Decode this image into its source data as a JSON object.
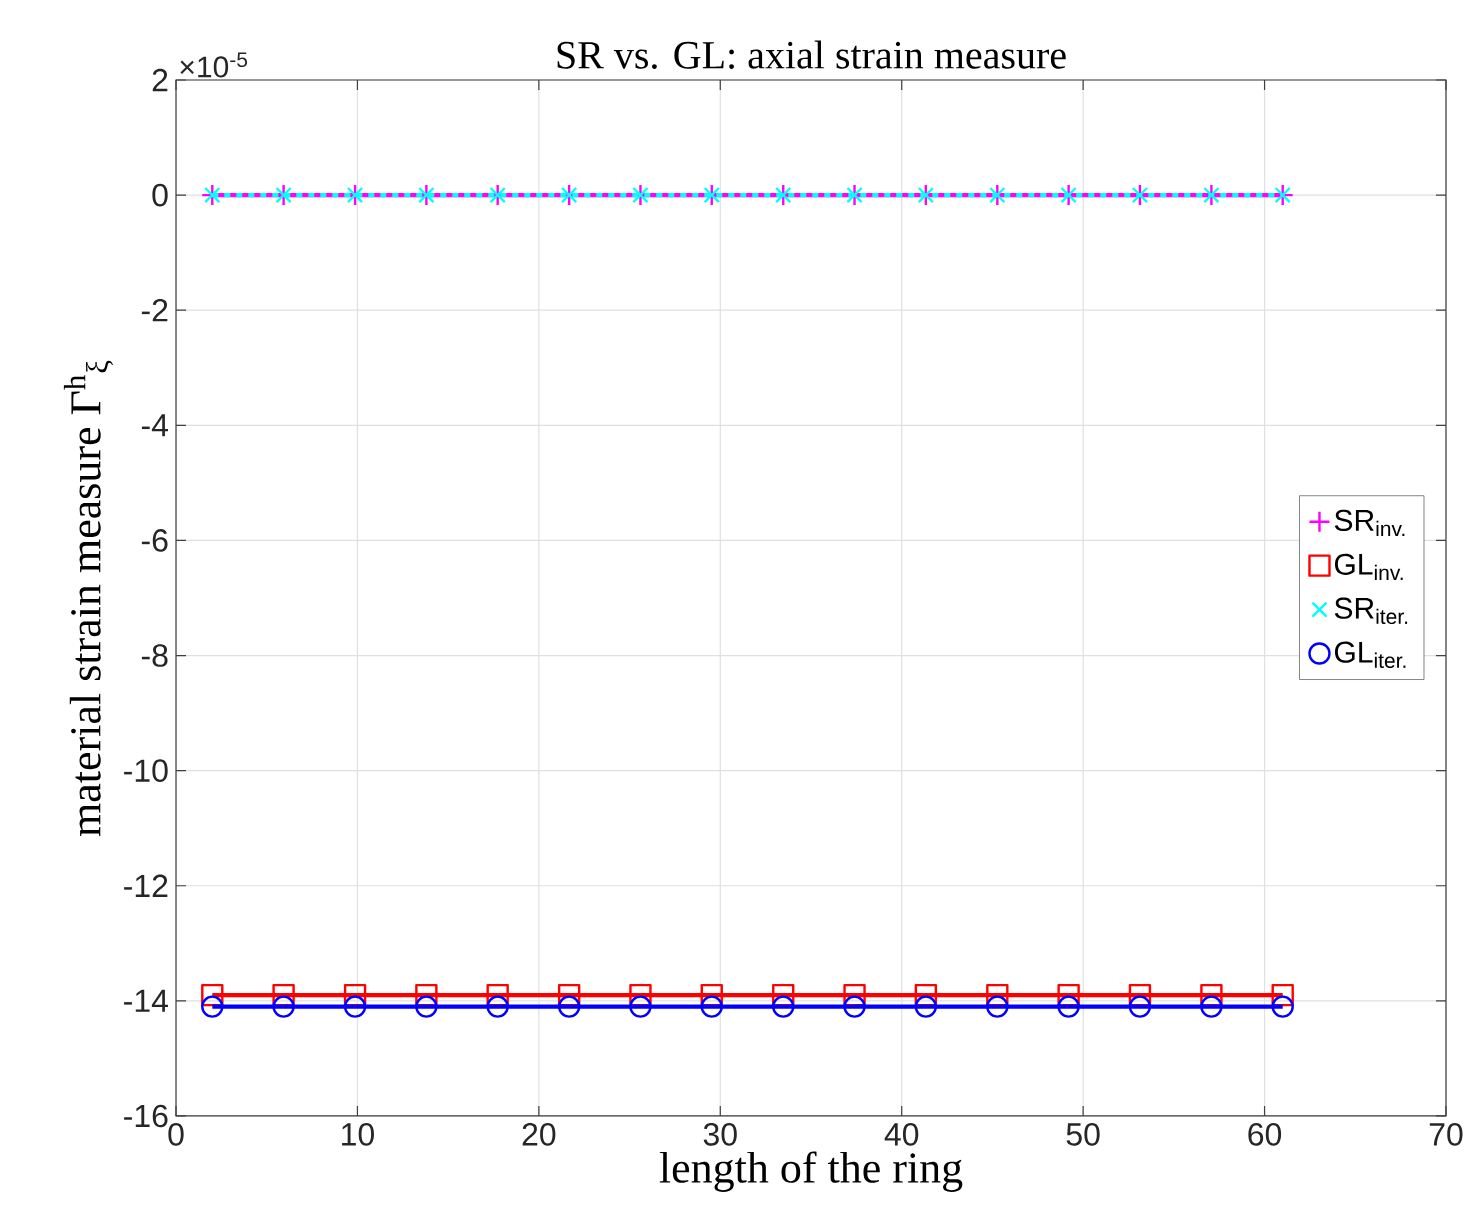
{
  "chart_data": {
    "type": "line",
    "title": "SR vs. GL: axial strain measure",
    "xlabel": "length of the ring",
    "ylabel": "material strain measure Γ$^{h}$$_{ξ}$",
    "annotations": [
      "×10$^{-5}$"
    ],
    "x": [
      2,
      5.93,
      9.87,
      13.8,
      17.73,
      21.67,
      25.6,
      29.53,
      33.47,
      37.4,
      41.33,
      45.27,
      49.2,
      53.13,
      57.07,
      61
    ],
    "series": [
      {
        "name": "SR$_{inv.}$",
        "color": "#ff00ff",
        "marker": "plus",
        "line_style": "solid",
        "values": [
          0,
          0,
          0,
          0,
          0,
          0,
          0,
          0,
          0,
          0,
          0,
          0,
          0,
          0,
          0,
          0
        ]
      },
      {
        "name": "GL$_{inv.}$",
        "color": "#ff0000",
        "marker": "square",
        "line_style": "solid",
        "values": [
          -13.9,
          -13.9,
          -13.9,
          -13.9,
          -13.9,
          -13.9,
          -13.9,
          -13.9,
          -13.9,
          -13.9,
          -13.9,
          -13.9,
          -13.9,
          -13.9,
          -13.9,
          -13.9
        ]
      },
      {
        "name": "SR$_{iter.}$",
        "color": "#00ffff",
        "marker": "cross",
        "line_style": "dashed",
        "values": [
          0,
          0,
          0,
          0,
          0,
          0,
          0,
          0,
          0,
          0,
          0,
          0,
          0,
          0,
          0,
          0
        ]
      },
      {
        "name": "GL$_{iter.}$",
        "color": "#0000ff",
        "marker": "circle",
        "line_style": "solid",
        "values": [
          -14.1,
          -14.1,
          -14.1,
          -14.1,
          -14.1,
          -14.1,
          -14.1,
          -14.1,
          -14.1,
          -14.1,
          -14.1,
          -14.1,
          -14.1,
          -14.1,
          -14.1,
          -14.1
        ]
      }
    ],
    "xlim": [
      0,
      70
    ],
    "ylim": [
      -16,
      2
    ],
    "xticks": [
      0,
      10,
      20,
      30,
      40,
      50,
      60,
      70
    ],
    "yticks": [
      -16,
      -14,
      -12,
      -10,
      -8,
      -6,
      -4,
      -2,
      0,
      2
    ],
    "grid": true,
    "legend": "right"
  }
}
